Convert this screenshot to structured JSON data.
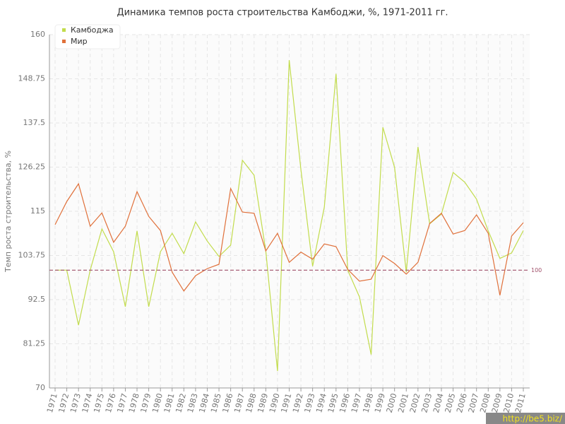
{
  "chart_data": {
    "type": "line",
    "title": "Динамика темпов роста строительства Камбоджи, %, 1971-2011 гг.",
    "y_label": "Темп роста строительства, %",
    "categories": [
      "1971",
      "1972",
      "1973",
      "1974",
      "1975",
      "1976",
      "1977",
      "1978",
      "1979",
      "1980",
      "1981",
      "1982",
      "1983",
      "1984",
      "1985",
      "1986",
      "1987",
      "1988",
      "1989",
      "1990",
      "1991",
      "1992",
      "1993",
      "1994",
      "1995",
      "1996",
      "1997",
      "1998",
      "1999",
      "2000",
      "2001",
      "2002",
      "2003",
      "2004",
      "2005",
      "2006",
      "2007",
      "2008",
      "2009",
      "2010",
      "2011"
    ],
    "series": [
      {
        "name": "Камбоджа",
        "color": "#c2dc4c",
        "values": [
          100,
          100,
          86,
          100,
          110.5,
          104.7,
          90.7,
          110,
          90.7,
          104.7,
          109.4,
          104.2,
          112.3,
          107.4,
          103.5,
          106.4,
          128,
          124.2,
          104.9,
          74.3,
          153.5,
          125.6,
          101,
          116.1,
          150,
          100,
          93.2,
          78.5,
          136.4,
          126.2,
          99.5,
          131.4,
          111.8,
          114.3,
          124.9,
          122.4,
          118.1,
          110,
          103,
          104.4,
          110.1
        ]
      },
      {
        "name": "Мир",
        "color": "#e0703a",
        "values": [
          111.6,
          117.5,
          122,
          111.2,
          114.6,
          107.1,
          111.2,
          120,
          113.7,
          110.1,
          99.5,
          94.7,
          98.6,
          100.4,
          101.5,
          120.8,
          114.8,
          114.5,
          104.9,
          109.4,
          102,
          104.6,
          102.8,
          106.7,
          106,
          100.2,
          97.2,
          97.7,
          103.7,
          101.7,
          99,
          102,
          111.9,
          114.5,
          109.2,
          110.1,
          114.1,
          109.4,
          93.6,
          108.7,
          112.1
        ]
      }
    ],
    "ylim": [
      70,
      160
    ],
    "yticks": [
      70,
      81.25,
      92.5,
      103.75,
      115,
      126.25,
      137.5,
      148.75,
      160
    ],
    "grid": true,
    "legend": "top-left",
    "reference_line": 100,
    "reference_color": "#a0506a",
    "watermark": "http://be5.biz/"
  }
}
